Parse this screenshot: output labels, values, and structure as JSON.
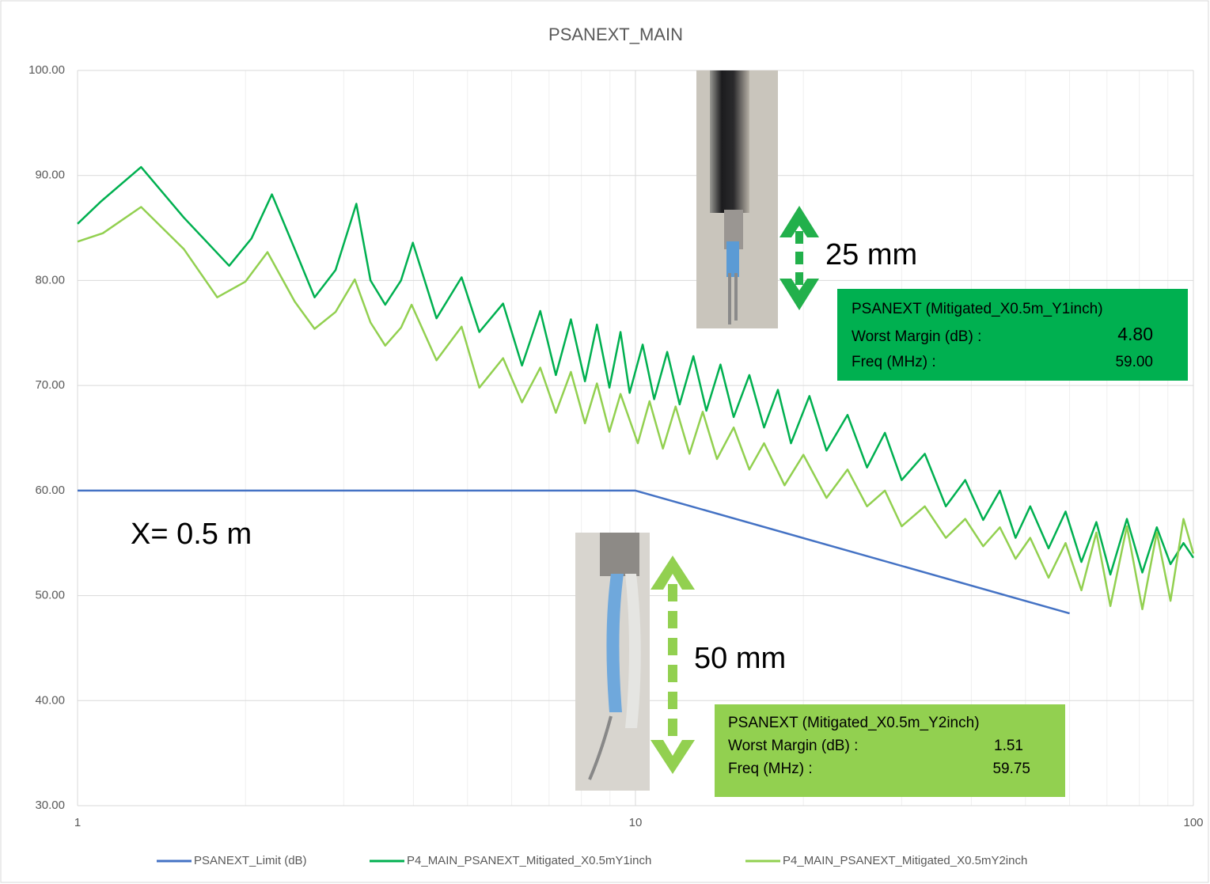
{
  "chart_data": {
    "type": "line",
    "title": "PSANEXT_MAIN",
    "xscale": "log",
    "grid": true,
    "xlim": [
      1,
      100
    ],
    "xticks": [
      1,
      10,
      100
    ],
    "ylim": [
      30,
      100
    ],
    "yticks": [
      {
        "value": 30,
        "label": "30.00"
      },
      {
        "value": 40,
        "label": "40.00"
      },
      {
        "value": 50,
        "label": "50.00"
      },
      {
        "value": 60,
        "label": "60.00"
      },
      {
        "value": 70,
        "label": "70.00"
      },
      {
        "value": 80,
        "label": "80.00"
      },
      {
        "value": 90,
        "label": "90.00"
      },
      {
        "value": 100,
        "label": "100.00"
      }
    ],
    "legend": "bottom",
    "series": [
      {
        "name": "PSANEXT_Limit (dB)",
        "color": "#4472c4",
        "x": [
          1,
          10,
          60
        ],
        "values": [
          60,
          60,
          48.3
        ]
      },
      {
        "name": "P4_MAIN_PSANEXT_Mitigated_X0.5mY1inch",
        "color": "#00b050",
        "x": [
          1,
          1.1,
          1.3,
          1.55,
          1.87,
          2.05,
          2.23,
          2.45,
          2.66,
          2.9,
          3.16,
          3.35,
          3.56,
          3.8,
          3.99,
          4.4,
          4.88,
          5.25,
          5.79,
          6.26,
          6.75,
          7.2,
          7.66,
          8.12,
          8.53,
          8.98,
          9.4,
          9.76,
          10.3,
          10.8,
          11.4,
          12.0,
          12.7,
          13.4,
          14.2,
          15,
          16,
          17,
          18,
          19,
          20.5,
          22,
          24,
          26,
          28,
          30,
          33,
          36,
          39,
          42,
          45,
          48,
          51,
          55,
          59,
          63,
          67,
          71,
          76,
          81,
          86,
          91,
          96,
          100
        ],
        "values": [
          85.4,
          87.5,
          90.8,
          86,
          81.4,
          84,
          88.2,
          83,
          78.4,
          81,
          87.3,
          80,
          77.7,
          80,
          83.6,
          76.4,
          80.3,
          75.1,
          77.8,
          71.9,
          77.1,
          71.0,
          76.3,
          70.4,
          75.8,
          69.8,
          75.1,
          69.3,
          73.9,
          68.7,
          73.2,
          68.2,
          72.8,
          67.6,
          72.0,
          67.0,
          71.0,
          66.0,
          69.6,
          64.5,
          69.0,
          63.8,
          67.2,
          62.2,
          65.5,
          61.0,
          63.5,
          58.5,
          61.0,
          57.2,
          60.0,
          55.5,
          58.5,
          54.5,
          58.0,
          53.2,
          57.0,
          52.0,
          57.3,
          52.2,
          56.5,
          53.0,
          55.0,
          53.6
        ]
      },
      {
        "name": "P4_MAIN_PSANEXT_Mitigated_X0.5mY2inch",
        "color": "#92d050",
        "x": [
          1,
          1.11,
          1.3,
          1.55,
          1.78,
          2.0,
          2.19,
          2.45,
          2.66,
          2.9,
          3.14,
          3.35,
          3.56,
          3.8,
          3.97,
          4.4,
          4.88,
          5.25,
          5.79,
          6.26,
          6.75,
          7.2,
          7.66,
          8.12,
          8.53,
          8.98,
          9.4,
          10.1,
          10.6,
          11.2,
          11.8,
          12.5,
          13.2,
          14,
          15,
          16,
          17,
          18.5,
          20,
          22,
          24,
          26,
          28,
          30,
          33,
          36,
          39,
          42,
          45,
          48,
          51,
          55,
          59,
          63,
          67,
          71,
          76,
          81,
          86,
          91,
          96,
          100
        ],
        "values": [
          83.7,
          84.5,
          87.0,
          83,
          78.4,
          79.9,
          82.7,
          78,
          75.4,
          77,
          80.1,
          76,
          73.8,
          75.5,
          77.7,
          72.4,
          75.6,
          69.8,
          72.6,
          68.4,
          71.7,
          67.4,
          71.3,
          66.4,
          70.2,
          65.6,
          69.2,
          64.5,
          68.5,
          64.0,
          68.0,
          63.5,
          67.5,
          63.0,
          66.0,
          62.0,
          64.5,
          60.5,
          63.4,
          59.3,
          62.0,
          58.5,
          60.0,
          56.6,
          58.5,
          55.5,
          57.3,
          54.7,
          56.5,
          53.5,
          55.5,
          51.7,
          55.0,
          50.5,
          56.0,
          49.0,
          56.6,
          48.7,
          56.0,
          49.5,
          57.3,
          54.0
        ]
      }
    ],
    "annotations": {
      "x_note": "X= 0.5 m",
      "dim_top": "25 mm",
      "dim_bottom": "50 mm",
      "box_top": {
        "title": "PSANEXT (Mitigated_X0.5m_Y1inch)",
        "margin_label": "Worst Margin (dB) :",
        "margin": "4.80",
        "freq_label": "Freq (MHz) :",
        "freq": "59.00"
      },
      "box_bottom": {
        "title": "PSANEXT (Mitigated_X0.5m_Y2inch)",
        "margin_label": "Worst Margin (dB) :",
        "margin": "1.51",
        "freq_label": "Freq (MHz) :",
        "freq": "59.75"
      }
    }
  }
}
